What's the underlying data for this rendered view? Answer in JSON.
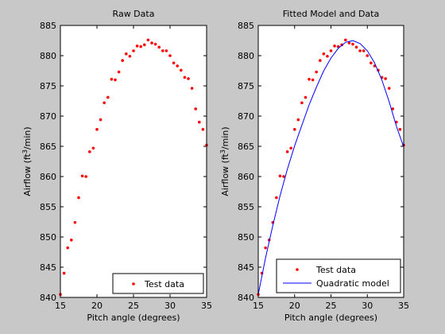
{
  "chart_data": [
    {
      "type": "scatter",
      "title": "Raw Data",
      "xlabel": "Pitch angle (degrees)",
      "ylabel": "Airflow (ft3/min)",
      "ylabel_parts": [
        "Airflow (ft",
        "3",
        "/min)"
      ],
      "xlim": [
        15,
        35
      ],
      "ylim": [
        840,
        885
      ],
      "xticks": [
        15,
        20,
        25,
        30,
        35
      ],
      "yticks": [
        840,
        845,
        850,
        855,
        860,
        865,
        870,
        875,
        880,
        885
      ],
      "grid": false,
      "legend": "bottom-right",
      "series": [
        {
          "name": "Test data",
          "kind": "points",
          "color": "#ff0000",
          "x": [
            15.0,
            15.5,
            16.0,
            16.5,
            17.0,
            17.5,
            18.0,
            18.5,
            19.0,
            19.5,
            20.0,
            20.5,
            21.0,
            21.5,
            22.0,
            22.5,
            23.0,
            23.5,
            24.0,
            24.5,
            25.0,
            25.5,
            26.0,
            26.5,
            27.0,
            27.5,
            28.0,
            28.5,
            29.0,
            29.5,
            30.0,
            30.5,
            31.0,
            31.5,
            32.0,
            32.5,
            33.0,
            33.5,
            34.0,
            34.5,
            35.0
          ],
          "y": [
            840.5,
            844.0,
            848.2,
            849.5,
            852.4,
            856.5,
            860.1,
            860.0,
            864.1,
            864.7,
            867.8,
            869.4,
            872.2,
            873.1,
            876.1,
            876.0,
            877.3,
            879.2,
            880.3,
            879.9,
            880.8,
            881.6,
            881.5,
            881.8,
            882.6,
            882.1,
            881.9,
            881.4,
            880.8,
            880.8,
            880.0,
            878.8,
            878.3,
            877.6,
            876.4,
            876.2,
            874.6,
            871.2,
            869.0,
            867.8,
            865.2
          ]
        }
      ]
    },
    {
      "type": "scatter",
      "title": "Fitted Model and Data",
      "xlabel": "Pitch angle (degrees)",
      "ylabel": "Airflow (ft3/min)",
      "ylabel_parts": [
        "Airflow (ft",
        "3",
        "/min)"
      ],
      "xlim": [
        15,
        35
      ],
      "ylim": [
        840,
        885
      ],
      "xticks": [
        15,
        20,
        25,
        30,
        35
      ],
      "yticks": [
        840,
        845,
        850,
        855,
        860,
        865,
        870,
        875,
        880,
        885
      ],
      "grid": false,
      "legend": "bottom-right",
      "series": [
        {
          "name": "Test data",
          "kind": "points",
          "color": "#ff0000",
          "x": [
            15.0,
            15.5,
            16.0,
            16.5,
            17.0,
            17.5,
            18.0,
            18.5,
            19.0,
            19.5,
            20.0,
            20.5,
            21.0,
            21.5,
            22.0,
            22.5,
            23.0,
            23.5,
            24.0,
            24.5,
            25.0,
            25.5,
            26.0,
            26.5,
            27.0,
            27.5,
            28.0,
            28.5,
            29.0,
            29.5,
            30.0,
            30.5,
            31.0,
            31.5,
            32.0,
            32.5,
            33.0,
            33.5,
            34.0,
            34.5,
            35.0
          ],
          "y": [
            840.5,
            844.0,
            848.2,
            849.5,
            852.4,
            856.5,
            860.1,
            860.0,
            864.1,
            864.7,
            867.8,
            869.4,
            872.2,
            873.1,
            876.1,
            876.0,
            877.3,
            879.2,
            880.3,
            879.9,
            880.8,
            881.6,
            881.5,
            881.8,
            882.6,
            882.1,
            881.9,
            881.4,
            880.8,
            880.8,
            880.0,
            878.8,
            878.3,
            877.6,
            876.4,
            876.2,
            874.6,
            871.2,
            869.0,
            867.8,
            865.2
          ]
        },
        {
          "name": "Quadratic model",
          "kind": "line",
          "color": "#0000ff",
          "x": [
            15,
            16,
            17,
            18,
            19,
            20,
            21,
            22,
            23,
            24,
            25,
            26,
            27,
            28,
            29,
            30,
            31,
            32,
            33,
            34,
            35
          ],
          "y": [
            840.5,
            846.5,
            851.9,
            856.8,
            861.2,
            865.1,
            868.5,
            871.9,
            874.8,
            877.5,
            879.6,
            881.2,
            882.2,
            882.5,
            882.0,
            880.8,
            878.8,
            876.0,
            872.4,
            868.3,
            864.9
          ]
        }
      ]
    }
  ]
}
